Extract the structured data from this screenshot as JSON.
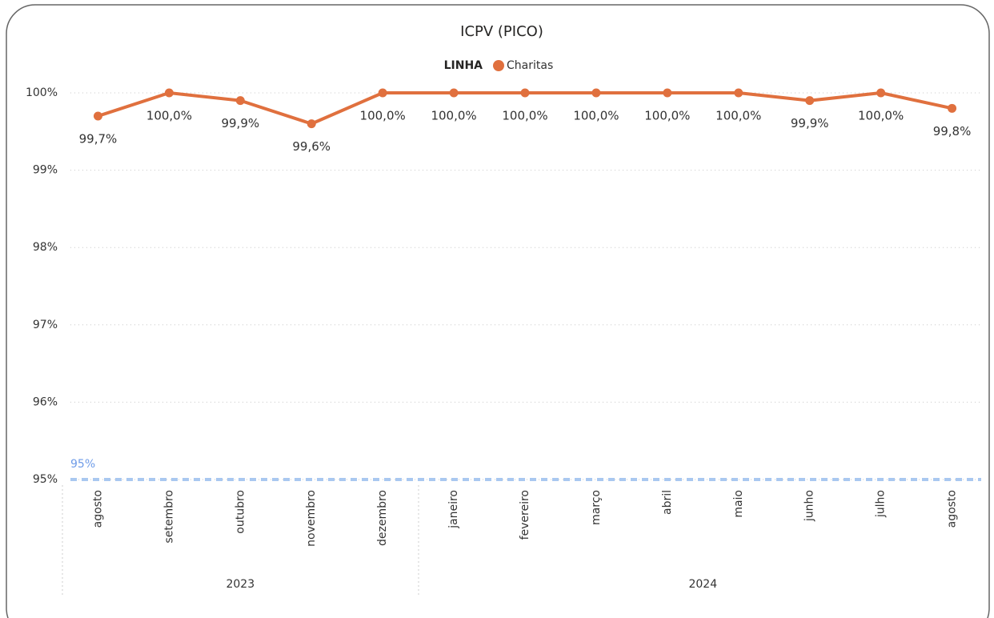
{
  "chart_data": {
    "type": "line",
    "title": "ICPV (PICO)",
    "legend_title": "LINHA",
    "category_groups": [
      {
        "label": "2023",
        "categories": [
          "agosto",
          "setembro",
          "outubro",
          "novembro",
          "dezembro"
        ]
      },
      {
        "label": "2024",
        "categories": [
          "janeiro",
          "fevereiro",
          "março",
          "abril",
          "maio",
          "junho",
          "julho",
          "agosto"
        ]
      }
    ],
    "series": [
      {
        "name": "Charitas",
        "color": "#E0703E",
        "values": [
          99.7,
          100,
          99.9,
          99.6,
          100,
          100,
          100,
          100,
          100,
          100,
          99.9,
          100,
          99.8
        ],
        "value_labels": [
          "99,7%",
          "100,0%",
          "99,9%",
          "99,6%",
          "100,0%",
          "100,0%",
          "100,0%",
          "100,0%",
          "100,0%",
          "100,0%",
          "99,9%",
          "100,0%",
          "99,8%"
        ]
      }
    ],
    "ylim": [
      95,
      100
    ],
    "yticks": [
      {
        "value": 95,
        "label": "95%"
      },
      {
        "value": 96,
        "label": "96%"
      },
      {
        "value": 97,
        "label": "97%"
      },
      {
        "value": 98,
        "label": "98%"
      },
      {
        "value": 99,
        "label": "99%"
      },
      {
        "value": 100,
        "label": "100%"
      }
    ],
    "grid": true,
    "reference_line": {
      "value": 95,
      "label": "95%",
      "color": "#A9C8F0"
    }
  }
}
